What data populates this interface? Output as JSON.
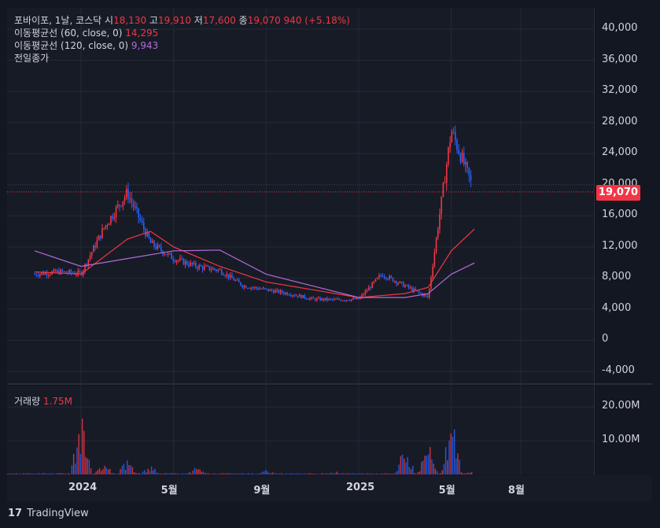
{
  "legend": {
    "main": {
      "symbol": "포바이포, 1날, 코스닥",
      "open_label": "시",
      "open": "18,130",
      "high_label": "고",
      "high": "19,910",
      "low_label": "저",
      "low": "17,600",
      "close_label": "종",
      "close": "19,070",
      "change": "940 (+5.18%)"
    },
    "ma60": {
      "label": "이동평균선 (60, close, 0)",
      "value": "14,295"
    },
    "ma120": {
      "label": "이동평균선 (120, close, 0)",
      "value": "9,943"
    },
    "prev_close": "전일종가",
    "volume": {
      "label": "거래량",
      "value": "1.75M"
    }
  },
  "price_badge": "19,070",
  "brand": {
    "name": "TradingView",
    "icon": "tradingview-logo-icon"
  },
  "colors": {
    "up": "#f23645",
    "down": "#2962ff",
    "ma60": "#f23645",
    "ma120": "#b36bd6",
    "background": "#131722"
  },
  "chart_data": {
    "type": "line",
    "y_axis": {
      "ticks": [
        "40,000",
        "36,000",
        "32,000",
        "28,000",
        "24,000",
        "20,000",
        "16,000",
        "12,000",
        "8,000",
        "4,000",
        "0",
        "-4,000"
      ],
      "range": [
        -4000,
        40000
      ]
    },
    "volume_axis": {
      "ticks": [
        "20.00M",
        "10.00M"
      ],
      "range": [
        0,
        21000000
      ]
    },
    "x_axis": {
      "ticks": [
        "2024",
        "5월",
        "9월",
        "2025",
        "5월",
        "8월"
      ],
      "dates": [
        "2024-01",
        "2024-05",
        "2024-09",
        "2025-01",
        "2025-05",
        "2025-08"
      ]
    },
    "last_price": 19070,
    "series": [
      {
        "name": "포바이포",
        "role": "price",
        "x": [
          "2023-11",
          "2023-12",
          "2024-01",
          "2024-02",
          "2024-03",
          "2024-04",
          "2024-05",
          "2024-06",
          "2024-07",
          "2024-08",
          "2024-09",
          "2024-10",
          "2024-11",
          "2024-12",
          "2025-01",
          "2025-02",
          "2025-03",
          "2025-04",
          "2025-05",
          "2025-06"
        ],
        "values": [
          8500,
          8800,
          8600,
          14500,
          19000,
          12500,
          10500,
          9500,
          9000,
          7000,
          6500,
          6000,
          5300,
          5200,
          5300,
          8500,
          7000,
          5500,
          27000,
          19070
        ]
      },
      {
        "name": "이동평균선 (60, close, 0)",
        "role": "ma60",
        "x": [
          "2023-11",
          "2024-01",
          "2024-03",
          "2024-04",
          "2024-05",
          "2024-07",
          "2024-09",
          "2024-11",
          "2025-01",
          "2025-03",
          "2025-04",
          "2025-05",
          "2025-06"
        ],
        "values": [
          8800,
          8500,
          13000,
          14000,
          12000,
          9500,
          7500,
          6500,
          5500,
          6000,
          6800,
          11500,
          14295
        ]
      },
      {
        "name": "이동평균선 (120, close, 0)",
        "role": "ma120",
        "x": [
          "2023-11",
          "2024-01",
          "2024-03",
          "2024-05",
          "2024-07",
          "2024-09",
          "2024-11",
          "2025-01",
          "2025-03",
          "2025-04",
          "2025-05",
          "2025-06"
        ],
        "values": [
          11500,
          9500,
          10500,
          11500,
          11600,
          8500,
          7000,
          5500,
          5500,
          6000,
          8500,
          9943
        ]
      }
    ],
    "volume": {
      "x": [
        "2024-01",
        "2024-02",
        "2024-03",
        "2024-04",
        "2024-06",
        "2024-09",
        "2024-12",
        "2025-03",
        "2025-04",
        "2025-05",
        "2025-06"
      ],
      "values": [
        19000000,
        4000000,
        5000000,
        3000000,
        2500000,
        1500000,
        1000000,
        9000000,
        10000000,
        19500000,
        1750000
      ]
    }
  }
}
